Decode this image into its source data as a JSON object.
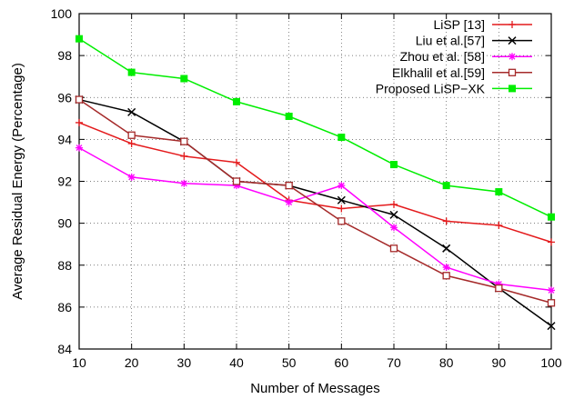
{
  "chart_data": {
    "type": "line",
    "title": "",
    "xlabel": "Number of Messages",
    "ylabel": "Average Residual Energy (Percentage)",
    "x": [
      10,
      20,
      30,
      40,
      50,
      60,
      70,
      80,
      90,
      100
    ],
    "xlim": [
      10,
      100
    ],
    "ylim": [
      84,
      100
    ],
    "xticks": [
      10,
      20,
      30,
      40,
      50,
      60,
      70,
      80,
      90,
      100
    ],
    "yticks": [
      84,
      86,
      88,
      90,
      92,
      94,
      96,
      98,
      100
    ],
    "grid": true,
    "legend_position": "top-right",
    "series": [
      {
        "name": "LiSP [13]",
        "color": "#e41a1c",
        "marker": "plus",
        "values": [
          94.8,
          93.8,
          93.2,
          92.9,
          91.1,
          90.7,
          90.9,
          90.1,
          89.9,
          89.1
        ]
      },
      {
        "name": "Liu et al.[57]",
        "color": "#000000",
        "marker": "x",
        "values": [
          95.9,
          95.3,
          93.9,
          92.0,
          91.8,
          91.1,
          90.4,
          88.8,
          86.9,
          85.1
        ]
      },
      {
        "name": "Zhou et al. [58]",
        "color": "#ff00ff",
        "marker": "star",
        "values": [
          93.6,
          92.2,
          91.9,
          91.8,
          91.0,
          91.8,
          89.8,
          87.9,
          87.1,
          86.8
        ]
      },
      {
        "name": "Elkhalil et al.[59]",
        "color": "#a52a2a",
        "marker": "open-square",
        "values": [
          95.9,
          94.2,
          93.9,
          92.0,
          91.8,
          90.1,
          88.8,
          87.5,
          86.9,
          86.2
        ]
      },
      {
        "name": "Proposed LiSP−XK",
        "color": "#00ee00",
        "marker": "filled-square",
        "values": [
          98.8,
          97.2,
          96.9,
          95.8,
          95.1,
          94.1,
          92.8,
          91.8,
          91.5,
          90.3
        ]
      }
    ]
  }
}
